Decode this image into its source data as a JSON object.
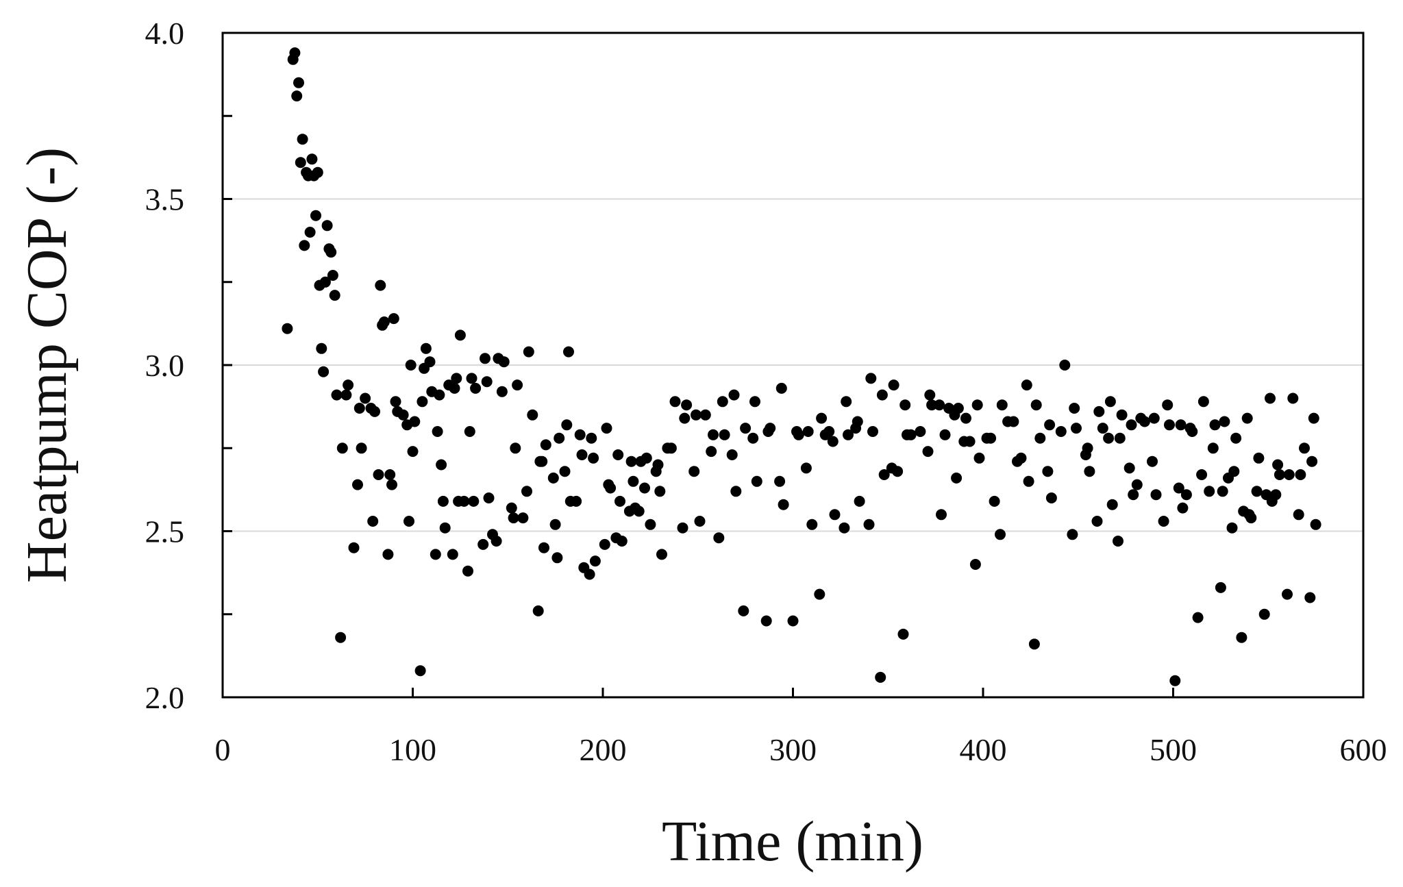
{
  "chart_data": {
    "type": "scatter",
    "title": "",
    "xlabel": "Time (min)",
    "ylabel": "Heatpump COP (-)",
    "xlim": [
      0,
      600
    ],
    "ylim": [
      2.0,
      4.0
    ],
    "x_ticks": [
      0,
      100,
      200,
      300,
      400,
      500,
      600
    ],
    "x_tick_labels": [
      "0",
      "100",
      "200",
      "300",
      "400",
      "500",
      "600"
    ],
    "y_ticks": [
      2.0,
      2.5,
      3.0,
      3.5,
      4.0
    ],
    "y_tick_labels": [
      "2.0",
      "2.5",
      "3.0",
      "3.5",
      "4.0"
    ],
    "y_minor_ticks": [
      2.25,
      2.75,
      3.25,
      3.75
    ],
    "grid": "horizontal at major ticks",
    "legend": "none",
    "marker_color": "#000000",
    "points": [
      [
        34,
        3.11
      ],
      [
        37,
        3.92
      ],
      [
        38,
        3.94
      ],
      [
        39,
        3.81
      ],
      [
        40,
        3.85
      ],
      [
        41,
        3.61
      ],
      [
        42,
        3.68
      ],
      [
        43,
        3.36
      ],
      [
        44,
        3.58
      ],
      [
        45,
        3.57
      ],
      [
        46,
        3.4
      ],
      [
        47,
        3.62
      ],
      [
        48,
        3.57
      ],
      [
        49,
        3.45
      ],
      [
        50,
        3.58
      ],
      [
        51,
        3.24
      ],
      [
        52,
        3.05
      ],
      [
        53,
        2.98
      ],
      [
        54,
        3.25
      ],
      [
        55,
        3.42
      ],
      [
        56,
        3.35
      ],
      [
        57,
        3.34
      ],
      [
        58,
        3.27
      ],
      [
        59,
        3.21
      ],
      [
        60,
        2.91
      ],
      [
        62,
        2.18
      ],
      [
        63,
        2.75
      ],
      [
        65,
        2.91
      ],
      [
        66,
        2.94
      ],
      [
        69,
        2.45
      ],
      [
        71,
        2.64
      ],
      [
        72,
        2.87
      ],
      [
        73,
        2.75
      ],
      [
        75,
        2.9
      ],
      [
        78,
        2.87
      ],
      [
        79,
        2.53
      ],
      [
        80,
        2.86
      ],
      [
        82,
        2.67
      ],
      [
        83,
        3.24
      ],
      [
        84,
        3.12
      ],
      [
        85,
        3.13
      ],
      [
        87,
        2.43
      ],
      [
        88,
        2.67
      ],
      [
        89,
        2.64
      ],
      [
        90,
        3.14
      ],
      [
        91,
        2.89
      ],
      [
        92,
        2.86
      ],
      [
        95,
        2.85
      ],
      [
        97,
        2.82
      ],
      [
        98,
        2.53
      ],
      [
        99,
        3.0
      ],
      [
        100,
        2.74
      ],
      [
        101,
        2.83
      ],
      [
        104,
        2.08
      ],
      [
        105,
        2.89
      ],
      [
        106,
        2.99
      ],
      [
        107,
        3.05
      ],
      [
        109,
        3.01
      ],
      [
        110,
        2.92
      ],
      [
        112,
        2.43
      ],
      [
        113,
        2.8
      ],
      [
        114,
        2.91
      ],
      [
        115,
        2.7
      ],
      [
        116,
        2.59
      ],
      [
        117,
        2.51
      ],
      [
        119,
        2.94
      ],
      [
        121,
        2.43
      ],
      [
        122,
        2.93
      ],
      [
        123,
        2.96
      ],
      [
        124,
        2.59
      ],
      [
        125,
        3.09
      ],
      [
        127,
        2.59
      ],
      [
        129,
        2.38
      ],
      [
        130,
        2.8
      ],
      [
        131,
        2.96
      ],
      [
        132,
        2.59
      ],
      [
        133,
        2.93
      ],
      [
        137,
        2.46
      ],
      [
        138,
        3.02
      ],
      [
        139,
        2.95
      ],
      [
        140,
        2.6
      ],
      [
        142,
        2.49
      ],
      [
        144,
        2.47
      ],
      [
        145,
        3.02
      ],
      [
        147,
        2.92
      ],
      [
        148,
        3.01
      ],
      [
        152,
        2.57
      ],
      [
        153,
        2.54
      ],
      [
        154,
        2.75
      ],
      [
        155,
        2.94
      ],
      [
        158,
        2.54
      ],
      [
        160,
        2.62
      ],
      [
        161,
        3.04
      ],
      [
        163,
        2.85
      ],
      [
        166,
        2.26
      ],
      [
        167,
        2.71
      ],
      [
        168,
        2.71
      ],
      [
        169,
        2.45
      ],
      [
        170,
        2.76
      ],
      [
        174,
        2.66
      ],
      [
        175,
        2.52
      ],
      [
        176,
        2.42
      ],
      [
        177,
        2.78
      ],
      [
        180,
        2.68
      ],
      [
        181,
        2.82
      ],
      [
        182,
        3.04
      ],
      [
        183,
        2.59
      ],
      [
        186,
        2.59
      ],
      [
        188,
        2.79
      ],
      [
        189,
        2.73
      ],
      [
        190,
        2.39
      ],
      [
        193,
        2.37
      ],
      [
        194,
        2.78
      ],
      [
        195,
        2.72
      ],
      [
        196,
        2.41
      ],
      [
        201,
        2.46
      ],
      [
        202,
        2.81
      ],
      [
        203,
        2.64
      ],
      [
        204,
        2.63
      ],
      [
        207,
        2.48
      ],
      [
        208,
        2.73
      ],
      [
        209,
        2.59
      ],
      [
        210,
        2.47
      ],
      [
        214,
        2.56
      ],
      [
        215,
        2.71
      ],
      [
        216,
        2.65
      ],
      [
        217,
        2.57
      ],
      [
        219,
        2.56
      ],
      [
        220,
        2.71
      ],
      [
        222,
        2.63
      ],
      [
        223,
        2.72
      ],
      [
        225,
        2.52
      ],
      [
        228,
        2.68
      ],
      [
        229,
        2.7
      ],
      [
        230,
        2.62
      ],
      [
        231,
        2.43
      ],
      [
        234,
        2.75
      ],
      [
        236,
        2.75
      ],
      [
        238,
        2.89
      ],
      [
        242,
        2.51
      ],
      [
        243,
        2.84
      ],
      [
        244,
        2.88
      ],
      [
        248,
        2.68
      ],
      [
        249,
        2.85
      ],
      [
        251,
        2.53
      ],
      [
        254,
        2.85
      ],
      [
        257,
        2.74
      ],
      [
        258,
        2.79
      ],
      [
        261,
        2.48
      ],
      [
        263,
        2.89
      ],
      [
        264,
        2.79
      ],
      [
        268,
        2.73
      ],
      [
        269,
        2.91
      ],
      [
        270,
        2.62
      ],
      [
        274,
        2.26
      ],
      [
        275,
        2.81
      ],
      [
        279,
        2.78
      ],
      [
        280,
        2.89
      ],
      [
        281,
        2.65
      ],
      [
        286,
        2.23
      ],
      [
        287,
        2.8
      ],
      [
        288,
        2.81
      ],
      [
        293,
        2.65
      ],
      [
        294,
        2.93
      ],
      [
        295,
        2.58
      ],
      [
        300,
        2.23
      ],
      [
        302,
        2.8
      ],
      [
        303,
        2.79
      ],
      [
        307,
        2.69
      ],
      [
        308,
        2.8
      ],
      [
        310,
        2.52
      ],
      [
        314,
        2.31
      ],
      [
        315,
        2.84
      ],
      [
        317,
        2.79
      ],
      [
        319,
        2.8
      ],
      [
        321,
        2.77
      ],
      [
        322,
        2.55
      ],
      [
        327,
        2.51
      ],
      [
        328,
        2.89
      ],
      [
        329,
        2.79
      ],
      [
        333,
        2.81
      ],
      [
        334,
        2.83
      ],
      [
        335,
        2.59
      ],
      [
        340,
        2.52
      ],
      [
        341,
        2.96
      ],
      [
        342,
        2.8
      ],
      [
        346,
        2.06
      ],
      [
        347,
        2.91
      ],
      [
        348,
        2.67
      ],
      [
        352,
        2.69
      ],
      [
        353,
        2.94
      ],
      [
        355,
        2.68
      ],
      [
        358,
        2.19
      ],
      [
        359,
        2.88
      ],
      [
        360,
        2.79
      ],
      [
        362,
        2.79
      ],
      [
        367,
        2.8
      ],
      [
        371,
        2.74
      ],
      [
        372,
        2.91
      ],
      [
        373,
        2.88
      ],
      [
        377,
        2.88
      ],
      [
        378,
        2.55
      ],
      [
        380,
        2.79
      ],
      [
        382,
        2.87
      ],
      [
        385,
        2.85
      ],
      [
        386,
        2.66
      ],
      [
        387,
        2.87
      ],
      [
        390,
        2.77
      ],
      [
        391,
        2.84
      ],
      [
        393,
        2.77
      ],
      [
        396,
        2.4
      ],
      [
        397,
        2.88
      ],
      [
        398,
        2.72
      ],
      [
        402,
        2.78
      ],
      [
        404,
        2.78
      ],
      [
        406,
        2.59
      ],
      [
        409,
        2.49
      ],
      [
        410,
        2.88
      ],
      [
        413,
        2.83
      ],
      [
        416,
        2.83
      ],
      [
        418,
        2.71
      ],
      [
        420,
        2.72
      ],
      [
        423,
        2.94
      ],
      [
        424,
        2.65
      ],
      [
        427,
        2.16
      ],
      [
        428,
        2.88
      ],
      [
        430,
        2.78
      ],
      [
        434,
        2.68
      ],
      [
        435,
        2.82
      ],
      [
        436,
        2.6
      ],
      [
        441,
        2.8
      ],
      [
        443,
        3.0
      ],
      [
        447,
        2.49
      ],
      [
        448,
        2.87
      ],
      [
        449,
        2.81
      ],
      [
        454,
        2.73
      ],
      [
        455,
        2.75
      ],
      [
        456,
        2.68
      ],
      [
        460,
        2.53
      ],
      [
        461,
        2.86
      ],
      [
        463,
        2.81
      ],
      [
        466,
        2.78
      ],
      [
        467,
        2.89
      ],
      [
        468,
        2.58
      ],
      [
        471,
        2.47
      ],
      [
        472,
        2.78
      ],
      [
        473,
        2.85
      ],
      [
        477,
        2.69
      ],
      [
        478,
        2.82
      ],
      [
        479,
        2.61
      ],
      [
        481,
        2.64
      ],
      [
        483,
        2.84
      ],
      [
        485,
        2.83
      ],
      [
        489,
        2.71
      ],
      [
        490,
        2.84
      ],
      [
        491,
        2.61
      ],
      [
        495,
        2.53
      ],
      [
        497,
        2.88
      ],
      [
        498,
        2.82
      ],
      [
        501,
        2.05
      ],
      [
        503,
        2.63
      ],
      [
        504,
        2.82
      ],
      [
        505,
        2.57
      ],
      [
        507,
        2.61
      ],
      [
        509,
        2.81
      ],
      [
        510,
        2.8
      ],
      [
        513,
        2.24
      ],
      [
        515,
        2.67
      ],
      [
        516,
        2.89
      ],
      [
        519,
        2.62
      ],
      [
        521,
        2.75
      ],
      [
        522,
        2.82
      ],
      [
        525,
        2.33
      ],
      [
        526,
        2.62
      ],
      [
        527,
        2.83
      ],
      [
        529,
        2.66
      ],
      [
        531,
        2.51
      ],
      [
        532,
        2.68
      ],
      [
        533,
        2.78
      ],
      [
        536,
        2.18
      ],
      [
        537,
        2.56
      ],
      [
        539,
        2.84
      ],
      [
        540,
        2.55
      ],
      [
        541,
        2.54
      ],
      [
        544,
        2.62
      ],
      [
        545,
        2.72
      ],
      [
        548,
        2.25
      ],
      [
        549,
        2.61
      ],
      [
        551,
        2.9
      ],
      [
        552,
        2.59
      ],
      [
        554,
        2.61
      ],
      [
        555,
        2.7
      ],
      [
        556,
        2.67
      ],
      [
        560,
        2.31
      ],
      [
        561,
        2.67
      ],
      [
        563,
        2.9
      ],
      [
        566,
        2.55
      ],
      [
        567,
        2.67
      ],
      [
        569,
        2.75
      ],
      [
        572,
        2.3
      ],
      [
        573,
        2.71
      ],
      [
        574,
        2.84
      ],
      [
        575,
        2.52
      ]
    ]
  }
}
